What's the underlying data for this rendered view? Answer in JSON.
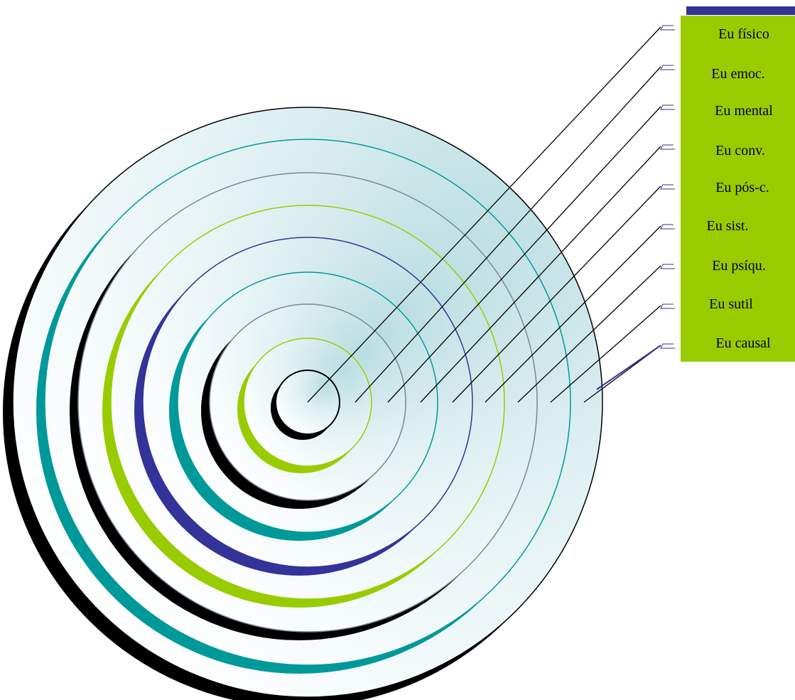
{
  "diagram": {
    "levels": [
      {
        "label": "Eu físico",
        "ring_color": "#000000"
      },
      {
        "label": "Eu emoc.",
        "ring_color": "#99cc00"
      },
      {
        "label": "Eu mental",
        "ring_color": "#000000"
      },
      {
        "label": "Eu conv.",
        "ring_color": "#009999"
      },
      {
        "label": "Eu pós-c.",
        "ring_color": "#333399"
      },
      {
        "label": "Eu  sist.",
        "ring_color": "#99cc00"
      },
      {
        "label": "Eu psíqu.",
        "ring_color": "#000000"
      },
      {
        "label": "Eu   sutil",
        "ring_color": "#009999"
      },
      {
        "label": "Eu  causal",
        "ring_color": "#000000"
      }
    ],
    "colors": {
      "label_panel": "#99cc00",
      "panel_top_bar": "#333399",
      "connector_line": "#000000",
      "background_gradient_inner": "#c4e2e6",
      "background_gradient_outer": "#ffffff"
    }
  }
}
